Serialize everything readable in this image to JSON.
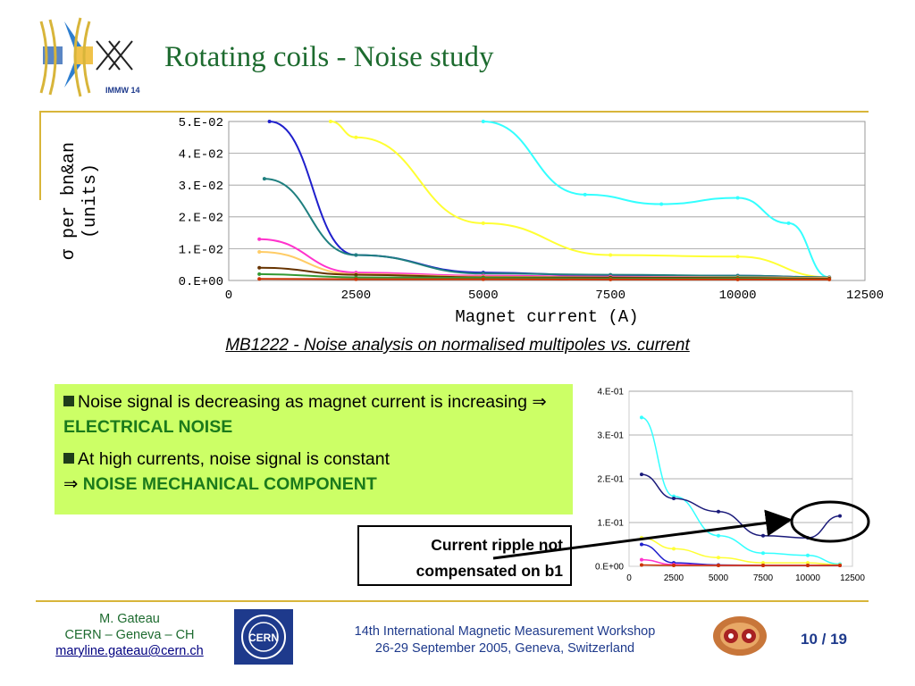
{
  "header": {
    "logo_label": "IMMW 14",
    "title": "Rotating coils - Noise study"
  },
  "main_chart_caption": "MB1222 - Noise analysis on normalised multipoles vs. current",
  "bullets": {
    "item1_text": "Noise signal is decreasing as magnet current is increasing ⇒ ",
    "item1_highlight": "ELECTRICAL NOISE",
    "item2_text": "At high currents, noise signal is constant",
    "item2_prefix": "⇒ ",
    "item2_highlight": "NOISE MECHANICAL COMPONENT"
  },
  "callout": {
    "line1": "Current ripple not",
    "line2": "compensated on b1"
  },
  "footer": {
    "author": "M. Gateau",
    "affiliation": "CERN – Geneva – CH",
    "email": "maryline.gateau@cern.ch",
    "cern_logo_label": "CERN",
    "event_line1": "14th International Magnetic Measurement Workshop",
    "event_line2": "26-29 September 2005, Geneva, Switzerland",
    "page": "10 / 19"
  },
  "colors": {
    "title_green": "#1d6b2f",
    "rule_gold": "#d8b53a",
    "bullet_bg": "#ccff66",
    "footer_blue": "#1e3a8c"
  },
  "chart_data": [
    {
      "type": "line",
      "xlabel": "Magnet current (A)",
      "ylabel": "σ per bn&an (units)",
      "xlim": [
        0,
        12500
      ],
      "ylim": [
        0,
        0.05
      ],
      "x_ticks": [
        0,
        2500,
        5000,
        7500,
        10000,
        12500
      ],
      "x_tick_labels": [
        "0",
        "2500",
        "5000",
        "7500",
        "10000",
        "12500"
      ],
      "y_ticks": [
        0,
        0.01,
        0.02,
        0.03,
        0.04,
        0.05
      ],
      "y_tick_labels": [
        "0.E+00",
        "1.E-02",
        "2.E-02",
        "3.E-02",
        "4.E-02",
        "5.E-02"
      ],
      "grid": "horizontal",
      "series": [
        {
          "color": "#33ffff",
          "points": [
            [
              5000,
              0.05
            ],
            [
              7000,
              0.027
            ],
            [
              8500,
              0.024
            ],
            [
              10000,
              0.026
            ],
            [
              11000,
              0.018
            ],
            [
              11800,
              0.001
            ]
          ]
        },
        {
          "color": "#ffff33",
          "points": [
            [
              2000,
              0.05
            ],
            [
              2500,
              0.045
            ],
            [
              5000,
              0.018
            ],
            [
              7500,
              0.008
            ],
            [
              10000,
              0.0075
            ],
            [
              11800,
              0.001
            ]
          ]
        },
        {
          "color": "#1f1fcc",
          "points": [
            [
              800,
              0.05
            ],
            [
              2500,
              0.008
            ],
            [
              5000,
              0.0025
            ],
            [
              7500,
              0.0015
            ],
            [
              10000,
              0.0015
            ],
            [
              11800,
              0.001
            ]
          ]
        },
        {
          "color": "#1f7f7f",
          "points": [
            [
              700,
              0.032
            ],
            [
              2500,
              0.008
            ],
            [
              5000,
              0.0022
            ],
            [
              7500,
              0.0018
            ],
            [
              10000,
              0.0015
            ],
            [
              11800,
              0.001
            ]
          ]
        },
        {
          "color": "#ff33cc",
          "points": [
            [
              600,
              0.013
            ],
            [
              2500,
              0.0025
            ],
            [
              5000,
              0.0015
            ],
            [
              7500,
              0.0012
            ],
            [
              10000,
              0.001
            ],
            [
              11800,
              0.0008
            ]
          ]
        },
        {
          "color": "#ffcc66",
          "points": [
            [
              600,
              0.009
            ],
            [
              2500,
              0.002
            ],
            [
              5000,
              0.0012
            ],
            [
              7500,
              0.001
            ],
            [
              10000,
              0.001
            ],
            [
              11800,
              0.0008
            ]
          ]
        },
        {
          "color": "#663300",
          "points": [
            [
              600,
              0.004
            ],
            [
              2500,
              0.0018
            ],
            [
              5000,
              0.001
            ],
            [
              7500,
              0.0009
            ],
            [
              10000,
              0.0008
            ],
            [
              11800,
              0.0006
            ]
          ]
        },
        {
          "color": "#339933",
          "points": [
            [
              600,
              0.002
            ],
            [
              2500,
              0.001
            ],
            [
              5000,
              0.0008
            ],
            [
              7500,
              0.0006
            ],
            [
              10000,
              0.0006
            ],
            [
              11800,
              0.0004
            ]
          ]
        },
        {
          "color": "#cc3300",
          "points": [
            [
              600,
              0.0005
            ],
            [
              2500,
              0.0004
            ],
            [
              5000,
              0.0004
            ],
            [
              7500,
              0.0003
            ],
            [
              10000,
              0.0003
            ],
            [
              11800,
              0.0003
            ]
          ]
        }
      ]
    },
    {
      "type": "line",
      "xlim": [
        0,
        12500
      ],
      "ylim": [
        0,
        0.4
      ],
      "x_ticks": [
        0,
        2500,
        5000,
        7500,
        10000,
        12500
      ],
      "x_tick_labels": [
        "0",
        "2500",
        "5000",
        "7500",
        "10000",
        "12500"
      ],
      "y_ticks": [
        0,
        0.1,
        0.2,
        0.3,
        0.4
      ],
      "y_tick_labels": [
        "0.E+00",
        "1.E-01",
        "2.E-01",
        "3.E-01",
        "4.E-01"
      ],
      "grid": "horizontal",
      "series": [
        {
          "color": "#33ffff",
          "points": [
            [
              700,
              0.34
            ],
            [
              2500,
              0.16
            ],
            [
              5000,
              0.07
            ],
            [
              7500,
              0.03
            ],
            [
              10000,
              0.025
            ],
            [
              11800,
              0.005
            ]
          ]
        },
        {
          "color": "#1a1a7a",
          "points": [
            [
              700,
              0.21
            ],
            [
              2500,
              0.155
            ],
            [
              5000,
              0.125
            ],
            [
              7500,
              0.07
            ],
            [
              10000,
              0.065
            ],
            [
              11800,
              0.115
            ]
          ]
        },
        {
          "color": "#ffff33",
          "points": [
            [
              700,
              0.065
            ],
            [
              2500,
              0.04
            ],
            [
              5000,
              0.02
            ],
            [
              7500,
              0.008
            ],
            [
              10000,
              0.008
            ],
            [
              11800,
              0.003
            ]
          ]
        },
        {
          "color": "#1f1fcc",
          "points": [
            [
              700,
              0.05
            ],
            [
              2500,
              0.008
            ],
            [
              5000,
              0.003
            ],
            [
              7500,
              0.002
            ],
            [
              10000,
              0.002
            ],
            [
              11800,
              0.002
            ]
          ]
        },
        {
          "color": "#ff33cc",
          "points": [
            [
              700,
              0.015
            ],
            [
              2500,
              0.004
            ],
            [
              5000,
              0.002
            ],
            [
              7500,
              0.002
            ],
            [
              10000,
              0.002
            ],
            [
              11800,
              0.002
            ]
          ]
        },
        {
          "color": "#cc3300",
          "points": [
            [
              700,
              0.003
            ],
            [
              2500,
              0.002
            ],
            [
              5000,
              0.002
            ],
            [
              7500,
              0.002
            ],
            [
              10000,
              0.002
            ],
            [
              11800,
              0.002
            ]
          ]
        }
      ]
    }
  ]
}
